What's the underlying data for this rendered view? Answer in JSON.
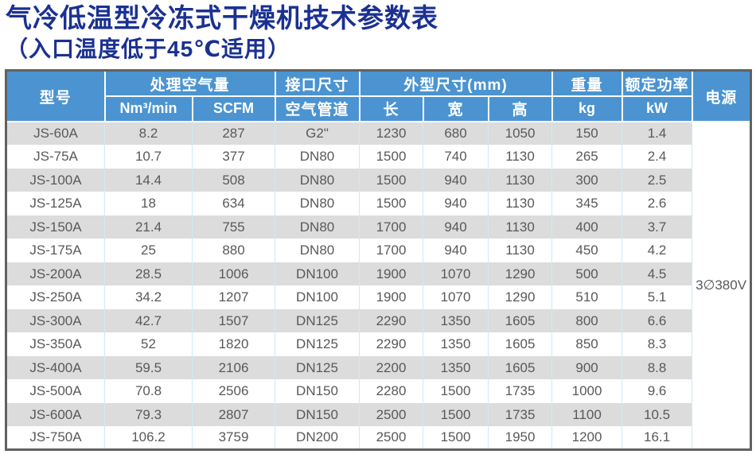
{
  "page": {
    "title": "气冷低温型冷冻式干燥机技术参数表",
    "subtitle": "（入口温度低于45℃适用）"
  },
  "table": {
    "header": {
      "model": "型号",
      "air_capacity": "处理空气量",
      "air_capacity_units": [
        "Nm³/min",
        "SCFM"
      ],
      "connection": "接口尺寸",
      "connection_sub": "空气管道",
      "dimensions": "外型尺寸(mm)",
      "dimensions_sub": [
        "长",
        "宽",
        "高"
      ],
      "weight": "重量",
      "weight_unit": "kg",
      "rated_power": "额定功率",
      "rated_power_unit": "kW",
      "supply": "电源"
    },
    "power_supply": "3∅380V",
    "rows": [
      [
        "JS-60A",
        "8.2",
        "287",
        "G2\"",
        "1230",
        "680",
        "1050",
        "150",
        "1.4"
      ],
      [
        "JS-75A",
        "10.7",
        "377",
        "DN80",
        "1500",
        "740",
        "1130",
        "265",
        "2.4"
      ],
      [
        "JS-100A",
        "14.4",
        "508",
        "DN80",
        "1500",
        "940",
        "1130",
        "300",
        "2.5"
      ],
      [
        "JS-125A",
        "18",
        "634",
        "DN80",
        "1500",
        "940",
        "1130",
        "345",
        "2.6"
      ],
      [
        "JS-150A",
        "21.4",
        "755",
        "DN80",
        "1700",
        "940",
        "1130",
        "400",
        "3.7"
      ],
      [
        "JS-175A",
        "25",
        "880",
        "DN80",
        "1700",
        "940",
        "1130",
        "450",
        "4.2"
      ],
      [
        "JS-200A",
        "28.5",
        "1006",
        "DN100",
        "1900",
        "1070",
        "1290",
        "500",
        "4.5"
      ],
      [
        "JS-250A",
        "34.2",
        "1207",
        "DN100",
        "1900",
        "1070",
        "1290",
        "510",
        "5.1"
      ],
      [
        "JS-300A",
        "42.7",
        "1507",
        "DN125",
        "2290",
        "1350",
        "1605",
        "800",
        "6.6"
      ],
      [
        "JS-350A",
        "52",
        "1820",
        "DN125",
        "2290",
        "1350",
        "1605",
        "850",
        "8.3"
      ],
      [
        "JS-400A",
        "59.5",
        "2106",
        "DN125",
        "2200",
        "1350",
        "1605",
        "900",
        "8.8"
      ],
      [
        "JS-500A",
        "70.8",
        "2506",
        "DN150",
        "2280",
        "1500",
        "1735",
        "1000",
        "9.6"
      ],
      [
        "JS-600A",
        "79.3",
        "2807",
        "DN150",
        "2500",
        "1500",
        "1735",
        "1100",
        "10.5"
      ],
      [
        "JS-750A",
        "106.2",
        "3759",
        "DN200",
        "2500",
        "1500",
        "1950",
        "1200",
        "16.1"
      ]
    ]
  },
  "colors": {
    "title": "#1B3191",
    "header_bg": "#4B94D1",
    "row_alt_bg": "#DCDCDC",
    "body_text": "#595959",
    "divider": "#CDEAF7",
    "outer_border": "#616161"
  }
}
